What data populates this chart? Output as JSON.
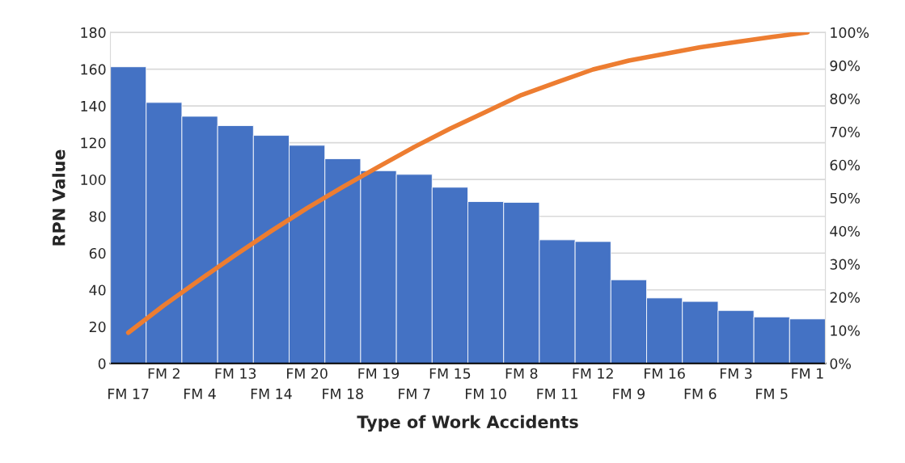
{
  "chart_data": {
    "type": "bar",
    "xlabel": "Type of Work Accidents",
    "ylabel": "RPN Value",
    "categories": [
      "FM 17",
      "FM 2",
      "FM 4",
      "FM 13",
      "FM 14",
      "FM 20",
      "FM 18",
      "FM 19",
      "FM 7",
      "FM 15",
      "FM 10",
      "FM 8",
      "FM 11",
      "FM 12",
      "FM 9",
      "FM 16",
      "FM 6",
      "FM 3",
      "FM 5",
      "FM 1"
    ],
    "series": [
      {
        "color": "#4472c4",
        "values": [
          161.3,
          141.9,
          134.4,
          129.3,
          124.0,
          118.6,
          111.3,
          104.8,
          102.8,
          95.8,
          88.0,
          87.6,
          67.2,
          66.3,
          45.5,
          35.6,
          33.7,
          28.8,
          25.3,
          24.2
        ]
      },
      {
        "type": "line",
        "axis": "y2",
        "color": "#ed7d31",
        "values": [
          9.3,
          17.6,
          25.3,
          32.8,
          40.0,
          46.9,
          53.3,
          59.4,
          65.4,
          70.9,
          76.0,
          81.1,
          85.0,
          88.8,
          91.5,
          93.5,
          95.5,
          97.1,
          98.6,
          100
        ]
      }
    ],
    "ylim": [
      0,
      180
    ],
    "yticks": [
      0,
      20,
      40,
      60,
      80,
      100,
      120,
      140,
      160,
      180
    ],
    "y2lim": [
      0,
      100
    ],
    "y2ticks": [
      {
        "value": 0,
        "label": "0%"
      },
      {
        "value": 10,
        "label": "10%"
      },
      {
        "value": 20,
        "label": "20%"
      },
      {
        "value": 30,
        "label": "30%"
      },
      {
        "value": 40,
        "label": "40%"
      },
      {
        "value": 50,
        "label": "50%"
      },
      {
        "value": 60,
        "label": "60%"
      },
      {
        "value": 70,
        "label": "70%"
      },
      {
        "value": 80,
        "label": "80%"
      },
      {
        "value": 90,
        "label": "90%"
      },
      {
        "value": 100,
        "label": "100%"
      }
    ],
    "grid": "y",
    "legend": false
  }
}
